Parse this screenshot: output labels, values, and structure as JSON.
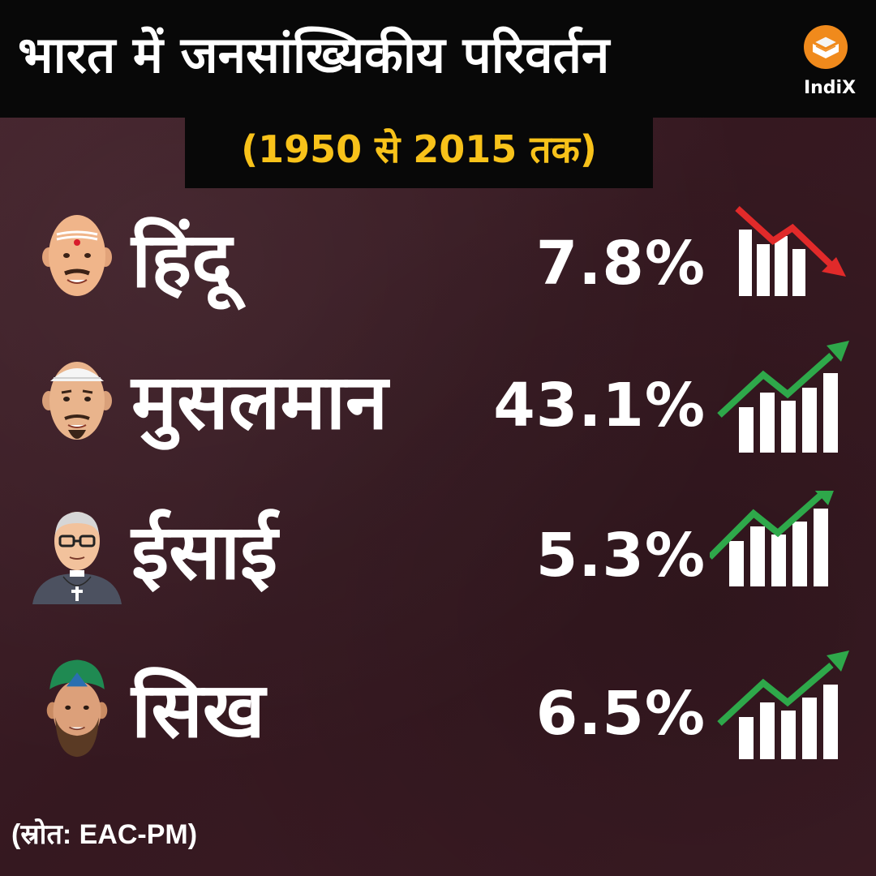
{
  "header": {
    "title": "भारत में जनसांख्यिकीय परिवर्तन",
    "subtitle": "(1950 से 2015 तक)"
  },
  "logo": {
    "text": "IndiX",
    "icon": "book-icon"
  },
  "rows": [
    {
      "label": "हिंदू",
      "value": "7.8%",
      "trend": "down",
      "trend_color": "#e12a2a",
      "avatar": "hindu-man-avatar"
    },
    {
      "label": "मुसलमान",
      "value": "43.1%",
      "trend": "up",
      "trend_color": "#2ea84a",
      "avatar": "muslim-man-avatar"
    },
    {
      "label": "ईसाई",
      "value": "5.3%",
      "trend": "up",
      "trend_color": "#2ea84a",
      "avatar": "priest-avatar"
    },
    {
      "label": "सिख",
      "value": "6.5%",
      "trend": "up",
      "trend_color": "#2ea84a",
      "avatar": "sikh-man-avatar"
    }
  ],
  "source": "(स्रोत: EAC-PM)",
  "colors": {
    "background": "#3a1a22",
    "title_bar": "#080808",
    "subtitle": "#f8c21a",
    "logo_orange": "#f08a1c"
  }
}
